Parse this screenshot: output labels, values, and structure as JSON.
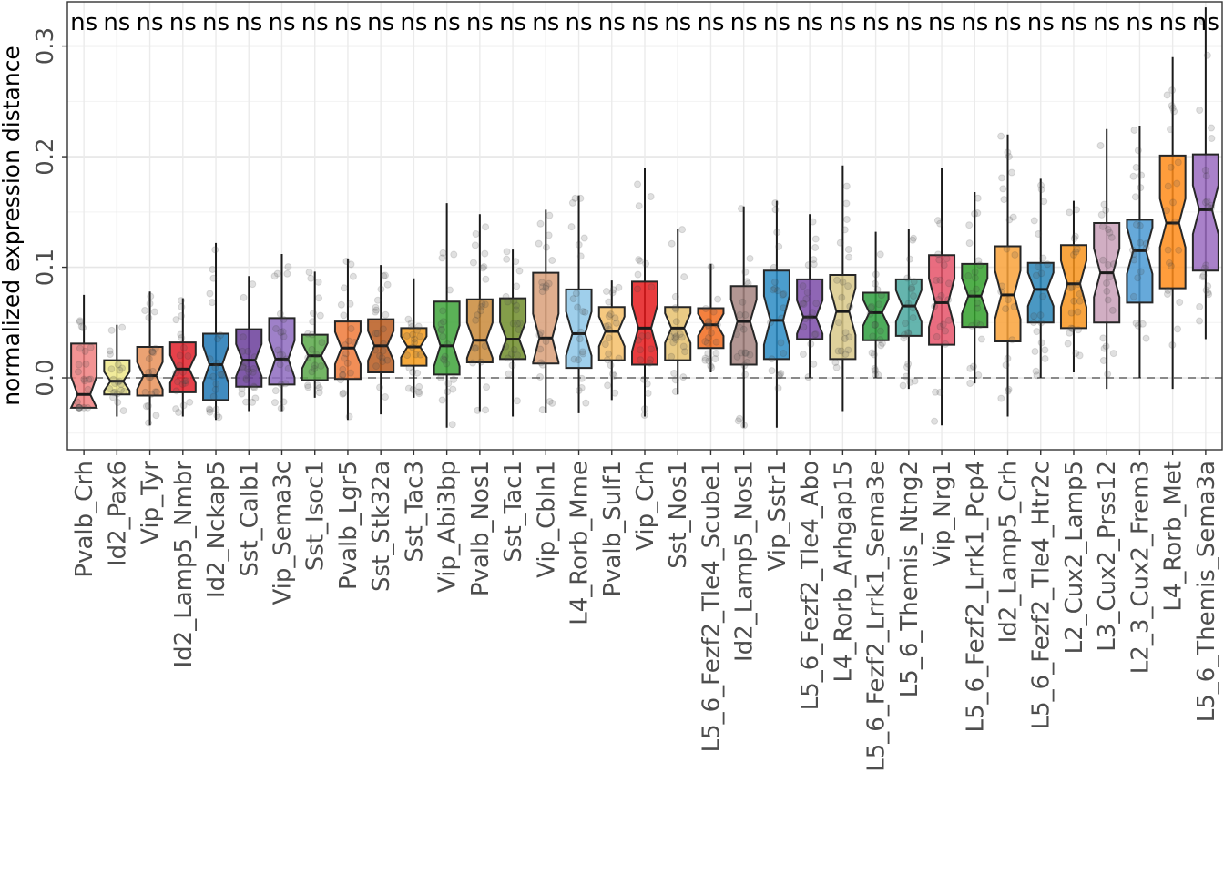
{
  "chart_data": {
    "type": "boxplot",
    "title": "",
    "xlabel": "",
    "ylabel": "normalized expression distance",
    "ylim": [
      -0.065,
      0.34
    ],
    "y_ticks": [
      0.0,
      0.1,
      0.2,
      0.3
    ],
    "y_tick_labels": [
      "0.0",
      "0.1",
      "0.2",
      "0.3"
    ],
    "reference_line": 0,
    "notched": true,
    "grid": true,
    "significance_label": "ns",
    "categories": [
      {
        "label": "Pvalb_Crh",
        "color": "#f08080",
        "q1": -0.027,
        "median": -0.015,
        "q3": 0.031,
        "lo": -0.027,
        "hi": 0.075
      },
      {
        "label": "Id2_Pax6",
        "color": "#eee88a",
        "q1": -0.015,
        "median": -0.003,
        "q3": 0.016,
        "lo": -0.035,
        "hi": 0.048
      },
      {
        "label": "Vip_Tyr",
        "color": "#e8925a",
        "q1": -0.016,
        "median": 0.002,
        "q3": 0.028,
        "lo": -0.043,
        "hi": 0.078
      },
      {
        "label": "Id2_Lamp5_Nmbr",
        "color": "#e0202a",
        "q1": -0.013,
        "median": 0.008,
        "q3": 0.032,
        "lo": -0.035,
        "hi": 0.072
      },
      {
        "label": "Id2_Nckap5",
        "color": "#1f77b4",
        "q1": -0.02,
        "median": 0.012,
        "q3": 0.04,
        "lo": -0.038,
        "hi": 0.122
      },
      {
        "label": "Sst_Calb1",
        "color": "#6a3d9a",
        "q1": -0.008,
        "median": 0.016,
        "q3": 0.044,
        "lo": -0.03,
        "hi": 0.092
      },
      {
        "label": "Vip_Sema3c",
        "color": "#8e6bbf",
        "q1": -0.006,
        "median": 0.017,
        "q3": 0.054,
        "lo": -0.03,
        "hi": 0.112
      },
      {
        "label": "Sst_Isoc1",
        "color": "#5aa84a",
        "q1": -0.002,
        "median": 0.02,
        "q3": 0.039,
        "lo": -0.018,
        "hi": 0.096
      },
      {
        "label": "Pvalb_Lgr5",
        "color": "#ee7a3a",
        "q1": -0.001,
        "median": 0.027,
        "q3": 0.051,
        "lo": -0.038,
        "hi": 0.108
      },
      {
        "label": "Sst_Stk32a",
        "color": "#b85a1e",
        "q1": 0.005,
        "median": 0.029,
        "q3": 0.053,
        "lo": -0.033,
        "hi": 0.102
      },
      {
        "label": "Sst_Tac3",
        "color": "#f39a1a",
        "q1": 0.011,
        "median": 0.028,
        "q3": 0.045,
        "lo": -0.018,
        "hi": 0.09
      },
      {
        "label": "Vip_Abi3bp",
        "color": "#3ea33a",
        "q1": 0.003,
        "median": 0.029,
        "q3": 0.069,
        "lo": -0.045,
        "hi": 0.158
      },
      {
        "label": "Pvalb_Nos1",
        "color": "#c98a3a",
        "q1": 0.014,
        "median": 0.034,
        "q3": 0.071,
        "lo": -0.03,
        "hi": 0.148
      },
      {
        "label": "Sst_Tac1",
        "color": "#6f8c2a",
        "q1": 0.017,
        "median": 0.035,
        "q3": 0.072,
        "lo": -0.035,
        "hi": 0.116
      },
      {
        "label": "Vip_Cbln1",
        "color": "#d9a07a",
        "q1": 0.013,
        "median": 0.036,
        "q3": 0.095,
        "lo": -0.032,
        "hi": 0.152
      },
      {
        "label": "L4_Rorb_Mme",
        "color": "#8ec7e8",
        "q1": 0.009,
        "median": 0.04,
        "q3": 0.08,
        "lo": -0.032,
        "hi": 0.165
      },
      {
        "label": "Pvalb_Sulf1",
        "color": "#f5c06a",
        "q1": 0.016,
        "median": 0.042,
        "q3": 0.064,
        "lo": -0.02,
        "hi": 0.088
      },
      {
        "label": "Vip_Crh",
        "color": "#e41a1c",
        "q1": 0.012,
        "median": 0.045,
        "q3": 0.087,
        "lo": -0.035,
        "hi": 0.19
      },
      {
        "label": "Sst_Nos1",
        "color": "#e6c270",
        "q1": 0.016,
        "median": 0.045,
        "q3": 0.064,
        "lo": -0.015,
        "hi": 0.135
      },
      {
        "label": "L5_6_Fezf2_Tle4_Scube1",
        "color": "#f26b1d",
        "q1": 0.027,
        "median": 0.048,
        "q3": 0.063,
        "lo": 0.005,
        "hi": 0.103
      },
      {
        "label": "Id2_Lamp5_Nos1",
        "color": "#a48480",
        "q1": 0.012,
        "median": 0.051,
        "q3": 0.083,
        "lo": -0.045,
        "hi": 0.155
      },
      {
        "label": "Vip_Sstr1",
        "color": "#2b8cc4",
        "q1": 0.017,
        "median": 0.052,
        "q3": 0.097,
        "lo": -0.045,
        "hi": 0.16
      },
      {
        "label": "L5_6_Fezf2_Tle4_Abo",
        "color": "#7b4ba8",
        "q1": 0.035,
        "median": 0.055,
        "q3": 0.089,
        "lo": 0.0,
        "hi": 0.148
      },
      {
        "label": "L4_Rorb_Arhgap15",
        "color": "#d9c98a",
        "q1": 0.017,
        "median": 0.06,
        "q3": 0.093,
        "lo": -0.03,
        "hi": 0.192
      },
      {
        "label": "L5_6_Fezf2_Lrrk1_Sema3e",
        "color": "#2e9e3e",
        "q1": 0.034,
        "median": 0.059,
        "q3": 0.077,
        "lo": 0.0,
        "hi": 0.132
      },
      {
        "label": "L5_6_Themis_Ntng2",
        "color": "#4aa8a0",
        "q1": 0.038,
        "median": 0.065,
        "q3": 0.089,
        "lo": -0.01,
        "hi": 0.135
      },
      {
        "label": "Vip_Nrg1",
        "color": "#e5536a",
        "q1": 0.03,
        "median": 0.068,
        "q3": 0.111,
        "lo": -0.043,
        "hi": 0.19
      },
      {
        "label": "L5_6_Fezf2_Lrrk1_Pcp4",
        "color": "#33a02c",
        "q1": 0.046,
        "median": 0.074,
        "q3": 0.103,
        "lo": -0.005,
        "hi": 0.168
      },
      {
        "label": "Id2_Lamp5_Crh",
        "color": "#f9a23a",
        "q1": 0.033,
        "median": 0.075,
        "q3": 0.119,
        "lo": -0.035,
        "hi": 0.22
      },
      {
        "label": "L5_6_Fezf2_Tle4_Htr2c",
        "color": "#2a86b8",
        "q1": 0.05,
        "median": 0.08,
        "q3": 0.104,
        "lo": 0.0,
        "hi": 0.18
      },
      {
        "label": "L2_Cux2_Lamp5",
        "color": "#f7941d",
        "q1": 0.045,
        "median": 0.085,
        "q3": 0.12,
        "lo": 0.005,
        "hi": 0.16
      },
      {
        "label": "L3_Cux2_Prss12",
        "color": "#c9a0b8",
        "q1": 0.05,
        "median": 0.095,
        "q3": 0.14,
        "lo": -0.01,
        "hi": 0.225
      },
      {
        "label": "L2_3_Cux2_Frem3",
        "color": "#4b9ad4",
        "q1": 0.068,
        "median": 0.115,
        "q3": 0.143,
        "lo": 0.0,
        "hi": 0.228
      },
      {
        "label": "L4_Rorb_Met",
        "color": "#ff8c1a",
        "q1": 0.081,
        "median": 0.14,
        "q3": 0.201,
        "lo": -0.01,
        "hi": 0.29
      },
      {
        "label": "L5_6_Themis_Sema3a",
        "color": "#9a6bc0",
        "q1": 0.097,
        "median": 0.152,
        "q3": 0.202,
        "lo": 0.035,
        "hi": 0.335
      }
    ]
  }
}
